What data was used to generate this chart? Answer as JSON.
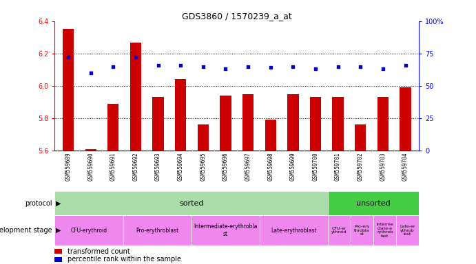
{
  "title": "GDS3860 / 1570239_a_at",
  "samples": [
    "GSM559689",
    "GSM559690",
    "GSM559691",
    "GSM559692",
    "GSM559693",
    "GSM559694",
    "GSM559695",
    "GSM559696",
    "GSM559697",
    "GSM559698",
    "GSM559699",
    "GSM559700",
    "GSM559701",
    "GSM559702",
    "GSM559703",
    "GSM559704"
  ],
  "transformed_count": [
    6.35,
    5.61,
    5.89,
    6.265,
    5.93,
    6.04,
    5.76,
    5.94,
    5.95,
    5.79,
    5.95,
    5.93,
    5.93,
    5.76,
    5.93,
    5.99
  ],
  "percentile_rank": [
    72,
    60,
    65,
    72,
    66,
    66,
    65,
    63,
    65,
    64,
    65,
    63,
    65,
    65,
    63,
    66
  ],
  "ylim_left": [
    5.6,
    6.4
  ],
  "ylim_right": [
    0,
    100
  ],
  "yticks_left": [
    5.6,
    5.8,
    6.0,
    6.2,
    6.4
  ],
  "yticks_right": [
    0,
    25,
    50,
    75,
    100
  ],
  "bar_color": "#cc0000",
  "dot_color": "#0000cc",
  "protocol_sorted_count": 12,
  "protocol_unsorted_count": 4,
  "protocol_sorted_label": "sorted",
  "protocol_unsorted_label": "unsorted",
  "protocol_sorted_color": "#aaddaa",
  "protocol_unsorted_color": "#44cc44",
  "dev_color": "#ee88ee",
  "dev_stages_sorted_labels": [
    "CFU-erythroid",
    "Pro-erythroblast",
    "Intermediate-erythrobla\nst",
    "Late-erythroblast"
  ],
  "dev_stages_sorted_counts": [
    3,
    3,
    3,
    3
  ],
  "dev_stages_unsorted_labels": [
    "CFU-er\nythroid",
    "Pro-ery\nthrobla\nst",
    "Interme\ndiate-e\nrythrob\nlast",
    "Late-er\nythrob\nlast"
  ],
  "dev_stages_unsorted_counts": [
    1,
    1,
    1,
    1
  ],
  "legend_bar_label": "transformed count",
  "legend_dot_label": "percentile rank within the sample",
  "tick_label_size": 5.5,
  "bar_width": 0.5,
  "xtick_bg_color": "#cccccc"
}
